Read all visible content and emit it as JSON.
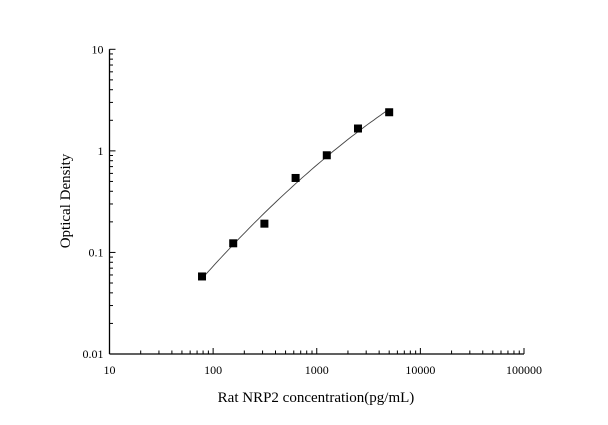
{
  "chart_data": {
    "type": "scatter",
    "title": "",
    "xlabel": "Rat NRP2 concentration(pg/mL)",
    "ylabel": "Optical Density",
    "x_scale": "log",
    "y_scale": "log",
    "xlim": [
      10,
      100000
    ],
    "ylim": [
      0.01,
      10
    ],
    "x_ticks": [
      "10",
      "100",
      "1000",
      "10000",
      "100000"
    ],
    "y_ticks": [
      "0.01",
      "0.1",
      "1",
      "10"
    ],
    "grid": false,
    "marker": "square",
    "fit_line": true,
    "color": "#000000",
    "series": [
      {
        "x": [
          78.125,
          156.25,
          312.5,
          625,
          1250,
          2500,
          5000
        ],
        "y": [
          0.058,
          0.123,
          0.192,
          0.541,
          0.905,
          1.66,
          2.4
        ]
      }
    ]
  }
}
